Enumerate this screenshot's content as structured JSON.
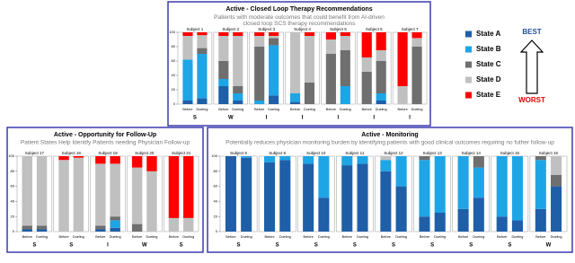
{
  "legend": {
    "items": [
      {
        "name": "State A",
        "color": "#1f5fa8"
      },
      {
        "name": "State B",
        "color": "#1ea5e6"
      },
      {
        "name": "State C",
        "color": "#6f6f6f"
      },
      {
        "name": "State D",
        "color": "#c0c0c0"
      },
      {
        "name": "State E",
        "color": "#ff0000"
      }
    ],
    "best": "BEST",
    "worst": "WORST"
  },
  "chart_data": [
    {
      "type": "bar",
      "stacked": true,
      "title": "Active - Closed Loop Therapy Recommendations",
      "subtitle": "Patients with moderate outcomes that could benefit from AI-driven closed loop SCS therapy recommendations",
      "ylim": [
        0,
        100
      ],
      "yticks": [
        0,
        20,
        40,
        60,
        80,
        100
      ],
      "subjects": [
        "Subject 1",
        "Subject 2",
        "Subject 3",
        "Subject 4",
        "Subject 5",
        "Subject 6",
        "Subject 7"
      ],
      "bar_labels": [
        "Before",
        "Dueling"
      ],
      "ratings": [
        "S",
        "W",
        "I",
        "I",
        "I",
        "I",
        "I"
      ],
      "series": [
        {
          "values": [
            [
              5,
              8
            ],
            [
              25,
              5
            ],
            [
              0,
              12
            ],
            [
              3,
              0
            ],
            [
              0,
              0
            ],
            [
              0,
              5
            ],
            [
              0,
              0
            ]
          ]
        },
        {
          "values": [
            [
              57,
              62
            ],
            [
              10,
              10
            ],
            [
              5,
              70
            ],
            [
              12,
              0
            ],
            [
              0,
              25
            ],
            [
              0,
              10
            ],
            [
              0,
              0
            ]
          ]
        },
        {
          "values": [
            [
              0,
              8
            ],
            [
              25,
              10
            ],
            [
              75,
              10
            ],
            [
              0,
              30
            ],
            [
              70,
              50
            ],
            [
              45,
              45
            ],
            [
              0,
              80
            ]
          ]
        },
        {
          "values": [
            [
              33,
              18
            ],
            [
              35,
              70
            ],
            [
              15,
              3
            ],
            [
              85,
              65
            ],
            [
              20,
              20
            ],
            [
              20,
              15
            ],
            [
              25,
              12
            ]
          ]
        },
        {
          "values": [
            [
              5,
              4
            ],
            [
              5,
              5
            ],
            [
              5,
              5
            ],
            [
              0,
              5
            ],
            [
              10,
              5
            ],
            [
              35,
              25
            ],
            [
              75,
              8
            ]
          ]
        }
      ]
    },
    {
      "type": "bar",
      "stacked": true,
      "title": "Active - Opportunity for Follow-Up",
      "subtitle": "Patient States Help Identify Patients needing Physician Follow-up",
      "ylim": [
        0,
        100
      ],
      "yticks": [
        0,
        20,
        40,
        60,
        80,
        100
      ],
      "subjects": [
        "Subject 17",
        "Subject 18",
        "Subject 19",
        "Subject 20",
        "Subject 21"
      ],
      "bar_labels": [
        "Before",
        "Dueling"
      ],
      "ratings": [
        "S",
        "S",
        "I",
        "W",
        "S"
      ],
      "series": [
        {
          "values": [
            [
              3,
              3
            ],
            [
              0,
              0
            ],
            [
              3,
              5
            ],
            [
              0,
              0
            ],
            [
              0,
              0
            ]
          ]
        },
        {
          "values": [
            [
              0,
              0
            ],
            [
              0,
              0
            ],
            [
              0,
              10
            ],
            [
              0,
              0
            ],
            [
              0,
              0
            ]
          ]
        },
        {
          "values": [
            [
              5,
              5
            ],
            [
              0,
              0
            ],
            [
              5,
              5
            ],
            [
              10,
              0
            ],
            [
              0,
              0
            ]
          ]
        },
        {
          "values": [
            [
              92,
              92
            ],
            [
              95,
              98
            ],
            [
              82,
              70
            ],
            [
              75,
              80
            ],
            [
              18,
              18
            ]
          ]
        },
        {
          "values": [
            [
              0,
              0
            ],
            [
              5,
              2
            ],
            [
              10,
              10
            ],
            [
              15,
              20
            ],
            [
              82,
              82
            ]
          ]
        }
      ]
    },
    {
      "type": "bar",
      "stacked": true,
      "title": "Active - Monitoring",
      "subtitle": "Potentially reduces physician monitoring burden by identifying patients with good clinical outcomes requiring no futher follow-up",
      "ylim": [
        0,
        100
      ],
      "yticks": [
        0,
        20,
        40,
        60,
        80,
        100
      ],
      "subjects": [
        "Subject 8",
        "Subject 9",
        "Subject 10",
        "Subject 11",
        "Subject 12",
        "Subject 13",
        "Subject 14",
        "Subject 15",
        "Subject 16"
      ],
      "bar_labels": [
        "Before",
        "Dueling"
      ],
      "ratings": [
        "S",
        "S",
        "S",
        "S",
        "S",
        "S",
        "S",
        "S",
        "W"
      ],
      "series": [
        {
          "values": [
            [
              100,
              98
            ],
            [
              92,
              95
            ],
            [
              90,
              45
            ],
            [
              88,
              90
            ],
            [
              80,
              60
            ],
            [
              20,
              25
            ],
            [
              30,
              45
            ],
            [
              20,
              15
            ],
            [
              30,
              60
            ]
          ]
        },
        {
          "values": [
            [
              0,
              2
            ],
            [
              8,
              5
            ],
            [
              10,
              55
            ],
            [
              12,
              10
            ],
            [
              15,
              40
            ],
            [
              75,
              75
            ],
            [
              70,
              40
            ],
            [
              80,
              85
            ],
            [
              65,
              0
            ]
          ]
        },
        {
          "values": [
            [
              0,
              0
            ],
            [
              0,
              0
            ],
            [
              0,
              0
            ],
            [
              0,
              0
            ],
            [
              0,
              0
            ],
            [
              5,
              0
            ],
            [
              0,
              15
            ],
            [
              0,
              0
            ],
            [
              5,
              15
            ]
          ]
        },
        {
          "values": [
            [
              0,
              0
            ],
            [
              0,
              0
            ],
            [
              0,
              0
            ],
            [
              0,
              0
            ],
            [
              5,
              0
            ],
            [
              0,
              0
            ],
            [
              0,
              0
            ],
            [
              0,
              0
            ],
            [
              0,
              25
            ]
          ]
        },
        {
          "values": [
            [
              0,
              0
            ],
            [
              0,
              0
            ],
            [
              0,
              0
            ],
            [
              0,
              0
            ],
            [
              0,
              0
            ],
            [
              0,
              0
            ],
            [
              0,
              0
            ],
            [
              0,
              0
            ],
            [
              0,
              0
            ]
          ]
        }
      ]
    }
  ]
}
